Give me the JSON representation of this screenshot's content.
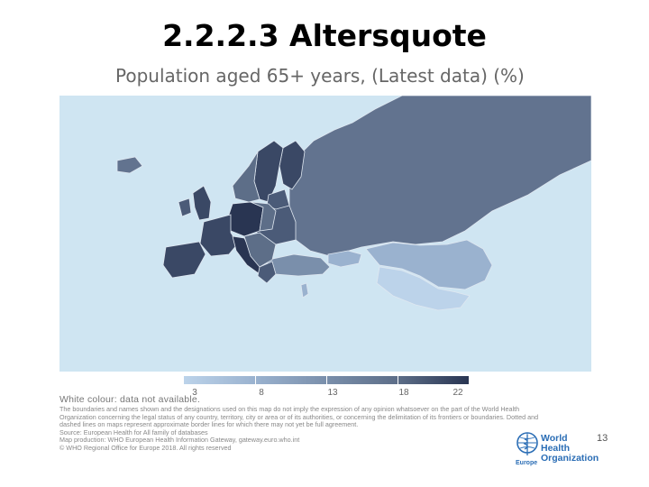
{
  "slide": {
    "title": "2.2.2.3 Altersquote",
    "page_number": "13"
  },
  "map": {
    "title": "Population aged 65+ years, (Latest data) (%)",
    "colors": {
      "sea": "#cfe5f2",
      "highest": "#293552",
      "high": "#4b5b78",
      "middle": "#62738f",
      "low": "#9ab2cf",
      "lowest": "#bcd3ea",
      "border": "#dfe7f0"
    },
    "legend": {
      "ticks": [
        "3",
        "8",
        "13",
        "18",
        "22"
      ],
      "white_note": "White colour: data not available."
    }
  },
  "footer": {
    "disclaimer": [
      "The boundaries and names shown and the designations used on this map do not imply the expression of any opinion whatsoever on the part of the World Health",
      "Organization concerning the legal status of any country, territory, city or area or of its authorities, or concerning the delimitation of its frontiers or boundaries. Dotted and",
      "dashed lines on maps represent approximate border lines for which there may not yet be full agreement.",
      "Source: European Health for All family of databases",
      "Map production: WHO European Health Information Gateway, gateway.euro.who.int",
      "© WHO Regional Office for Europe 2018. All rights reserved"
    ],
    "who_logo": {
      "line1": "World Health",
      "line2": "Organization",
      "region": "Europe",
      "icon": "who-emblem-icon"
    }
  }
}
